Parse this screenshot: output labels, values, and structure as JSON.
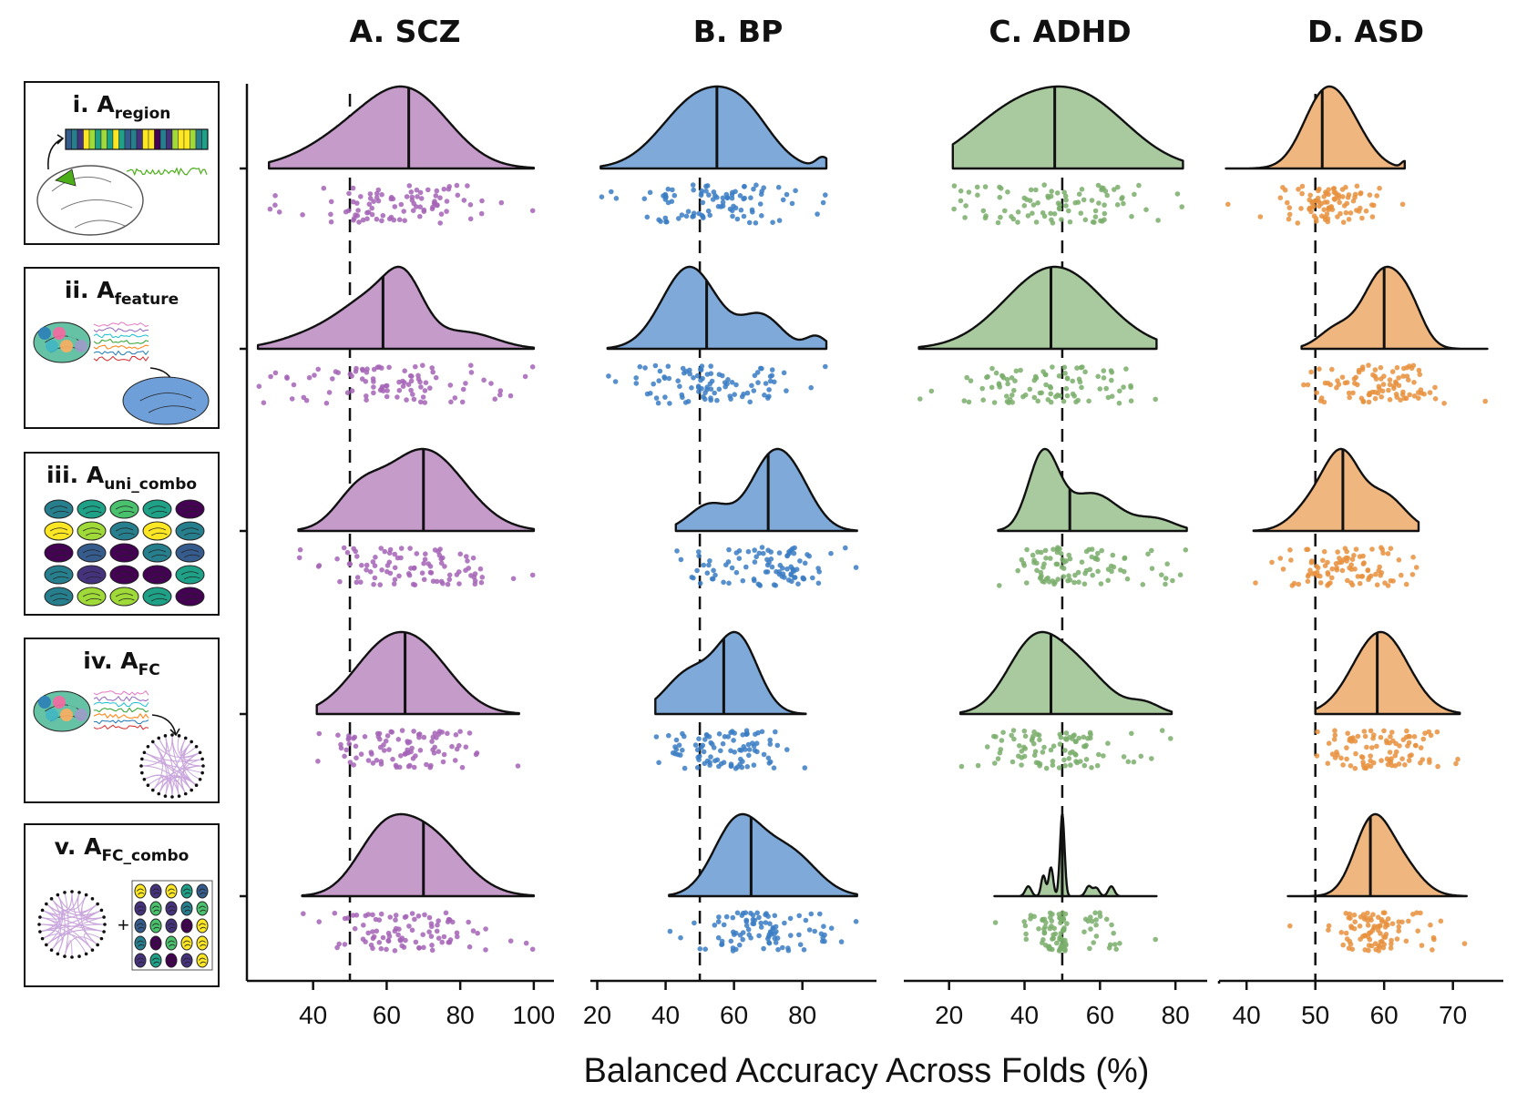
{
  "xlabel": "Balanced Accuracy Across Folds (%)",
  "colors": {
    "SCZ": "#c49bc9",
    "BP": "#7ea9d8",
    "ADHD": "#a9c99f",
    "ASD": "#f0b67f",
    "SCZ_dot": "#a564b6",
    "BP_dot": "#3a7cc3",
    "ADHD_dot": "#7aae6c",
    "ASD_dot": "#e8903d"
  },
  "rows": [
    {
      "numeral": "i.",
      "letter": "A",
      "subscript": "region",
      "icon": "brain-region-timeseries-icon"
    },
    {
      "numeral": "ii.",
      "letter": "A",
      "subscript": "feature",
      "icon": "brain-features-icon"
    },
    {
      "numeral": "iii.",
      "letter": "A",
      "subscript": "uni_combo",
      "icon": "brain-grid-icon"
    },
    {
      "numeral": "iv.",
      "letter": "A",
      "subscript": "FC",
      "icon": "connectivity-circle-icon"
    },
    {
      "numeral": "v.",
      "letter": "A",
      "subscript": "FC_combo",
      "icon": "connectivity-plus-grid-icon"
    }
  ],
  "chart_data": [
    {
      "type": "raincloud",
      "title": "A. SCZ",
      "xlim": [
        22,
        103
      ],
      "xticks": [
        40,
        60,
        80,
        100
      ],
      "chance": 50,
      "series": [
        {
          "row": "i",
          "median": 66,
          "range": [
            28,
            100
          ],
          "modes": [
            [
              52,
              13,
              0.55
            ],
            [
              67,
              11,
              1.0
            ]
          ]
        },
        {
          "row": "ii",
          "median": 59,
          "range": [
            25,
            100
          ],
          "modes": [
            [
              42,
              10,
              0.25
            ],
            [
              58,
              9,
              0.8
            ],
            [
              65,
              5,
              0.65
            ],
            [
              82,
              8,
              0.25
            ]
          ]
        },
        {
          "row": "iii",
          "median": 70,
          "range": [
            36,
            100
          ],
          "modes": [
            [
              52,
              6,
              0.35
            ],
            [
              70,
              11,
              1.0
            ]
          ]
        },
        {
          "row": "iv",
          "median": 65,
          "range": [
            41,
            96
          ],
          "modes": [
            [
              58,
              9,
              0.85
            ],
            [
              70,
              9,
              0.85
            ]
          ]
        },
        {
          "row": "v",
          "median": 70,
          "range": [
            37,
            100
          ],
          "modes": [
            [
              58,
              7,
              0.6
            ],
            [
              70,
              10,
              1.0
            ]
          ]
        }
      ]
    },
    {
      "type": "raincloud",
      "title": "B. BP",
      "xlim": [
        18,
        99
      ],
      "xticks": [
        20,
        40,
        60,
        80
      ],
      "chance": 50,
      "series": [
        {
          "row": "i",
          "median": 55,
          "range": [
            21,
            87
          ],
          "modes": [
            [
              50,
              11,
              1.0
            ],
            [
              64,
              8,
              0.5
            ],
            [
              86,
              2,
              0.15
            ]
          ]
        },
        {
          "row": "ii",
          "median": 52,
          "range": [
            23,
            87
          ],
          "modes": [
            [
              47,
              8,
              1.0
            ],
            [
              68,
              6,
              0.4
            ],
            [
              84,
              3,
              0.15
            ]
          ]
        },
        {
          "row": "iii",
          "median": 70,
          "range": [
            43,
            96
          ],
          "modes": [
            [
              53,
              6,
              0.45
            ],
            [
              70,
              6,
              1.0
            ],
            [
              78,
              6,
              0.7
            ]
          ]
        },
        {
          "row": "iv",
          "median": 57,
          "range": [
            37,
            81
          ],
          "modes": [
            [
              47,
              7,
              0.55
            ],
            [
              61,
              6,
              1.0
            ]
          ]
        },
        {
          "row": "v",
          "median": 65,
          "range": [
            41,
            96
          ],
          "modes": [
            [
              61,
              7,
              1.0
            ],
            [
              76,
              8,
              0.6
            ]
          ]
        }
      ]
    },
    {
      "type": "raincloud",
      "title": "C. ADHD",
      "xlim": [
        8,
        86
      ],
      "xticks": [
        20,
        40,
        60,
        80
      ],
      "chance": 50,
      "series": [
        {
          "row": "i",
          "median": 48,
          "range": [
            21,
            82
          ],
          "modes": [
            [
              35,
              12,
              0.65
            ],
            [
              55,
              13,
              1.0
            ]
          ]
        },
        {
          "row": "ii",
          "median": 47,
          "range": [
            12,
            75
          ],
          "modes": [
            [
              48,
              13,
              1.0
            ]
          ]
        },
        {
          "row": "iii",
          "median": 52,
          "range": [
            33,
            83
          ],
          "modes": [
            [
              45,
              4,
              1.0
            ],
            [
              58,
              7,
              0.5
            ],
            [
              75,
              5,
              0.15
            ]
          ]
        },
        {
          "row": "iv",
          "median": 47,
          "range": [
            23,
            79
          ],
          "modes": [
            [
              42,
              7,
              1.0
            ],
            [
              54,
              8,
              0.7
            ],
            [
              72,
              4,
              0.15
            ]
          ]
        },
        {
          "row": "v",
          "median": 50,
          "range": [
            32,
            75
          ],
          "modes": [
            [
              50,
              0.6,
              1.0
            ],
            [
              47,
              0.6,
              0.35
            ],
            [
              45,
              0.6,
              0.25
            ],
            [
              41,
              0.8,
              0.12
            ],
            [
              57,
              0.8,
              0.12
            ],
            [
              59,
              0.8,
              0.1
            ],
            [
              63,
              0.8,
              0.12
            ]
          ]
        }
      ]
    },
    {
      "type": "raincloud",
      "title": "D. ASD",
      "xlim": [
        36,
        76
      ],
      "xticks": [
        40,
        50,
        60,
        70
      ],
      "chance": 50,
      "series": [
        {
          "row": "i",
          "median": 51,
          "range": [
            37,
            63
          ],
          "modes": [
            [
              51,
              3,
              1.0
            ],
            [
              55,
              3,
              0.55
            ],
            [
              63,
              0.5,
              0.1
            ]
          ]
        },
        {
          "row": "ii",
          "median": 60,
          "range": [
            48,
            75
          ],
          "modes": [
            [
              53,
              2.5,
              0.25
            ],
            [
              60,
              3,
              1.0
            ],
            [
              64,
              2,
              0.3
            ]
          ]
        },
        {
          "row": "iii",
          "median": 54,
          "range": [
            41,
            65
          ],
          "modes": [
            [
              50,
              3,
              0.45
            ],
            [
              54,
              2.5,
              1.0
            ],
            [
              60,
              3,
              0.55
            ]
          ]
        },
        {
          "row": "iv",
          "median": 59,
          "range": [
            50,
            71
          ],
          "modes": [
            [
              59.5,
              4,
              1.0
            ]
          ]
        },
        {
          "row": "v",
          "median": 58,
          "range": [
            46,
            72
          ],
          "modes": [
            [
              58,
              2.5,
              1.0
            ],
            [
              62,
              3,
              0.55
            ]
          ]
        }
      ]
    }
  ]
}
